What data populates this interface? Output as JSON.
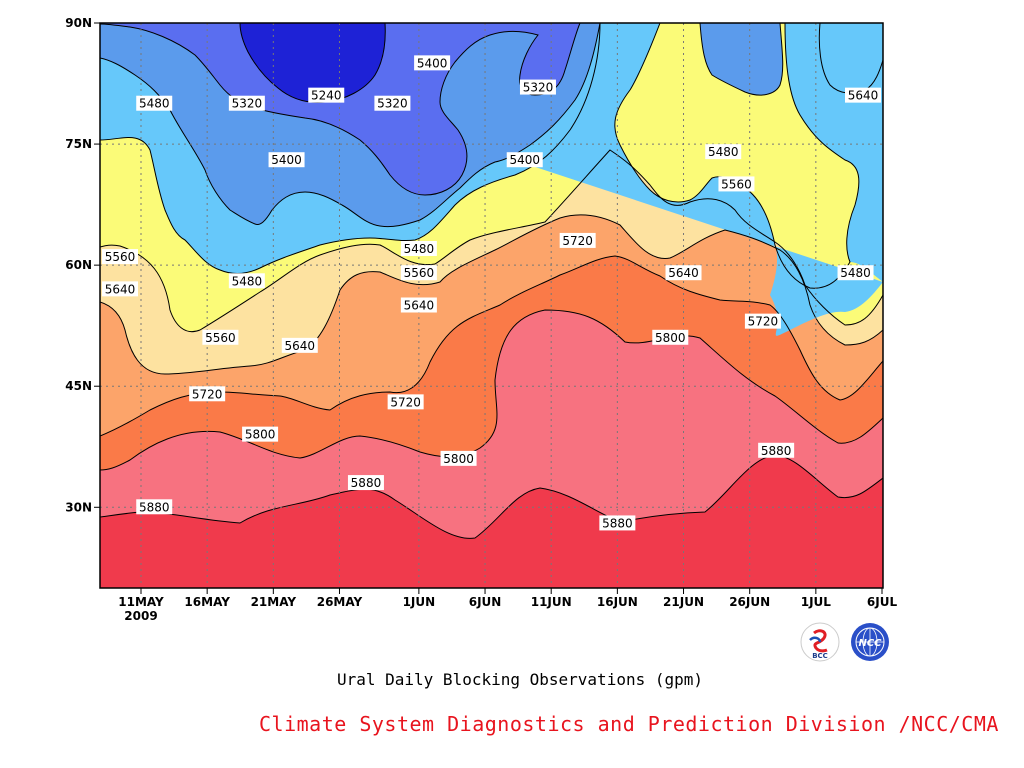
{
  "chart_data": {
    "type": "heatmap",
    "subtype": "filled-contour time-latitude",
    "title": "Ural Daily Blocking Observations (gpm)",
    "units": "gpm",
    "y_ticks": [
      "30N",
      "45N",
      "60N",
      "75N",
      "90N"
    ],
    "y_tick_values": [
      30,
      45,
      60,
      75,
      90
    ],
    "ylim": [
      20,
      90
    ],
    "x_ticks": [
      "11MAY",
      "16MAY",
      "21MAY",
      "26MAY",
      "1JUN",
      "6JUN",
      "11JUN",
      "16JUN",
      "21JUN",
      "26JUN",
      "1JUL",
      "6JUL"
    ],
    "x_year": "2009",
    "grid": "dotted",
    "contour_levels": [
      5240,
      5320,
      5400,
      5480,
      5560,
      5640,
      5720,
      5800,
      5880
    ],
    "level_colors": {
      "lt5240": "#1e22d6",
      "5240": "#3c46e8",
      "5320": "#5a6ef0",
      "5400": "#5b9bec",
      "5480": "#66c8fa",
      "5560": "#fbfb78",
      "5640": "#fde2a0",
      "5720": "#fca46a",
      "5800": "#fa7a48",
      "5880": "#f77280",
      "gt5880": "#f03a4c"
    },
    "contour_labels": [
      {
        "t": "5480",
        "date": "12MAY",
        "lat": 80
      },
      {
        "t": "5320",
        "date": "19MAY",
        "lat": 80
      },
      {
        "t": "5240",
        "date": "25MAY",
        "lat": 81
      },
      {
        "t": "5320",
        "date": "30MAY",
        "lat": 80
      },
      {
        "t": "5400",
        "date": "2JUN",
        "lat": 85
      },
      {
        "t": "5320",
        "date": "10JUN",
        "lat": 82
      },
      {
        "t": "5640",
        "date": "5JUL",
        "lat": 81
      },
      {
        "t": "5400",
        "date": "22MAY",
        "lat": 73
      },
      {
        "t": "5400",
        "date": "9JUN",
        "lat": 73
      },
      {
        "t": "5480",
        "date": "24JUN",
        "lat": 74
      },
      {
        "t": "5560",
        "date": "25JUN",
        "lat": 70
      },
      {
        "t": "5560",
        "date": "8MAY",
        "lat": 61
      },
      {
        "t": "5720",
        "date": "13JUN",
        "lat": 63
      },
      {
        "t": "5480",
        "date": "1JUN",
        "lat": 62
      },
      {
        "t": "5480",
        "date": "19MAY",
        "lat": 58
      },
      {
        "t": "5560",
        "date": "1JUN",
        "lat": 59
      },
      {
        "t": "5640",
        "date": "21JUN",
        "lat": 59
      },
      {
        "t": "5480",
        "date": "4JUL",
        "lat": 59
      },
      {
        "t": "5640",
        "date": "9MAY",
        "lat": 57
      },
      {
        "t": "5640",
        "date": "1JUN",
        "lat": 55
      },
      {
        "t": "5720",
        "date": "27JUN",
        "lat": 53
      },
      {
        "t": "5560",
        "date": "17MAY",
        "lat": 51
      },
      {
        "t": "5800",
        "date": "20JUN",
        "lat": 51
      },
      {
        "t": "5640",
        "date": "23MAY",
        "lat": 50
      },
      {
        "t": "5720",
        "date": "16MAY",
        "lat": 44
      },
      {
        "t": "5720",
        "date": "31MAY",
        "lat": 43
      },
      {
        "t": "5800",
        "date": "20MAY",
        "lat": 39
      },
      {
        "t": "5800",
        "date": "4JUN",
        "lat": 36
      },
      {
        "t": "5880",
        "date": "28JUN",
        "lat": 37
      },
      {
        "t": "5880",
        "date": "28MAY",
        "lat": 33
      },
      {
        "t": "5880",
        "date": "12MAY",
        "lat": 30
      },
      {
        "t": "5880",
        "date": "16JUN",
        "lat": 28
      }
    ]
  },
  "credit": "Climate System Diagnostics and Prediction Division /NCC/CMA",
  "logos": {
    "left": "BCC",
    "right": "NCC"
  }
}
